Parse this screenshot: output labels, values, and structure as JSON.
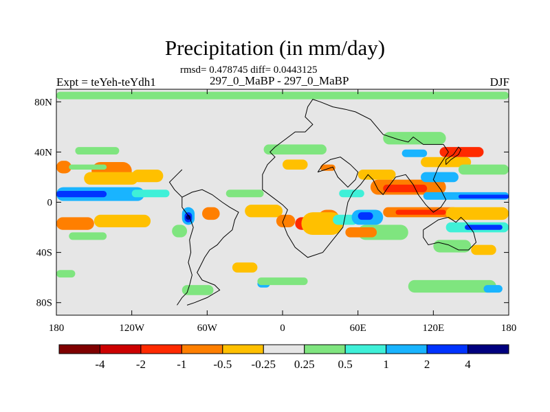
{
  "title": "Precipitation (in mm/day)",
  "stats": "rmsd= 0.478745 diff= 0.0443125",
  "left_label": "Expt = teYeh-teYdh1",
  "center_label": "297_0_MaBP - 297_0_MaBP",
  "right_label": "DJF",
  "chart_data": {
    "type": "heatmap",
    "subtype": "filled-contour map (cylindrical equidistant)",
    "title": "Precipitation (in mm/day)",
    "xlabel": "",
    "ylabel": "",
    "xlim": [
      -180,
      180
    ],
    "ylim": [
      -90,
      90
    ],
    "x_ticks": [
      {
        "value": -180,
        "label": "180"
      },
      {
        "value": -120,
        "label": "120W"
      },
      {
        "value": -60,
        "label": "60W"
      },
      {
        "value": 0,
        "label": "0"
      },
      {
        "value": 60,
        "label": "60E"
      },
      {
        "value": 120,
        "label": "120E"
      },
      {
        "value": 180,
        "label": "180"
      }
    ],
    "y_ticks": [
      {
        "value": 80,
        "label": "80N"
      },
      {
        "value": 40,
        "label": "40N"
      },
      {
        "value": 0,
        "label": "0"
      },
      {
        "value": -40,
        "label": "40S"
      },
      {
        "value": -80,
        "label": "80S"
      }
    ],
    "colorbar": {
      "levels": [
        -4,
        -2,
        -1,
        -0.5,
        -0.25,
        0.25,
        0.5,
        1,
        2,
        4
      ],
      "labels": [
        "-4",
        "-2",
        "-1",
        "-0.5",
        "-0.25",
        "0.25",
        "0.5",
        "1",
        "2",
        "4"
      ],
      "colors": [
        "#7f0000",
        "#cc0000",
        "#ff2a00",
        "#ff7f00",
        "#ffc000",
        "#e6e6e6",
        "#7fe57f",
        "#3ff0d8",
        "#19b4ff",
        "#0033ff",
        "#00007f"
      ]
    },
    "background_class": 5,
    "regions": [
      {
        "n": "arctic-band",
        "c": 6,
        "lon": [
          -180,
          180
        ],
        "lat": [
          82,
          88
        ]
      },
      {
        "n": "ne-pacific-wet",
        "c": 6,
        "lon": [
          -165,
          -130
        ],
        "lat": [
          38,
          44
        ]
      },
      {
        "n": "np-dry-1",
        "c": 3,
        "lon": [
          -180,
          -168
        ],
        "lat": [
          23,
          33
        ]
      },
      {
        "n": "np-dry-2",
        "c": 3,
        "lon": [
          -152,
          -120
        ],
        "lat": [
          18,
          32
        ]
      },
      {
        "n": "np-dry-3",
        "c": 4,
        "lon": [
          -158,
          -115
        ],
        "lat": [
          14,
          24
        ]
      },
      {
        "n": "np-dry-4",
        "c": 4,
        "lon": [
          -120,
          -95
        ],
        "lat": [
          16,
          26
        ]
      },
      {
        "n": "np-wet-1",
        "c": 6,
        "lon": [
          -170,
          -140
        ],
        "lat": [
          26,
          30
        ]
      },
      {
        "n": "eq-pac-wet",
        "c": 8,
        "lon": [
          -180,
          -110
        ],
        "lat": [
          1,
          12
        ]
      },
      {
        "n": "eq-pac-core",
        "c": 9,
        "lon": [
          -180,
          -140
        ],
        "lat": [
          4,
          9
        ]
      },
      {
        "n": "eq-pac-tail",
        "c": 7,
        "lon": [
          -120,
          -90
        ],
        "lat": [
          4,
          10
        ]
      },
      {
        "n": "sp-dry-1",
        "c": 3,
        "lon": [
          -180,
          -150
        ],
        "lat": [
          -22,
          -12
        ]
      },
      {
        "n": "sp-dry-2",
        "c": 4,
        "lon": [
          -150,
          -105
        ],
        "lat": [
          -20,
          -10
        ]
      },
      {
        "n": "sp-wet",
        "c": 6,
        "lon": [
          -170,
          -140
        ],
        "lat": [
          -30,
          -24
        ]
      },
      {
        "n": "sp-wet-2",
        "c": 6,
        "lon": [
          -180,
          -165
        ],
        "lat": [
          -60,
          -54
        ]
      },
      {
        "n": "amazon-wet",
        "c": 8,
        "lon": [
          -80,
          -70
        ],
        "lat": [
          -18,
          -4
        ]
      },
      {
        "n": "amazon-core",
        "c": 9,
        "lon": [
          -78,
          -72
        ],
        "lat": [
          -16,
          -8
        ]
      },
      {
        "n": "amazon-deep",
        "c": 10,
        "lon": [
          -77,
          -73
        ],
        "lat": [
          -14,
          -10
        ]
      },
      {
        "n": "andes-wet",
        "c": 6,
        "lon": [
          -88,
          -76
        ],
        "lat": [
          -28,
          -18
        ]
      },
      {
        "n": "atl-dry-1",
        "c": 3,
        "lon": [
          -64,
          -50
        ],
        "lat": [
          -14,
          -4
        ]
      },
      {
        "n": "atl-dry-2",
        "c": 4,
        "lon": [
          -30,
          0
        ],
        "lat": [
          -12,
          -2
        ]
      },
      {
        "n": "atl-dry-3",
        "c": 3,
        "lon": [
          -5,
          10
        ],
        "lat": [
          -20,
          -10
        ]
      },
      {
        "n": "atl-wet-n",
        "c": 6,
        "lon": [
          -45,
          -15
        ],
        "lat": [
          4,
          10
        ]
      },
      {
        "n": "sa-s-dry",
        "c": 4,
        "lon": [
          -40,
          -20
        ],
        "lat": [
          -56,
          -48
        ]
      },
      {
        "n": "sa-s-wet",
        "c": 8,
        "lon": [
          -20,
          -10
        ],
        "lat": [
          -68,
          -62
        ]
      },
      {
        "n": "so-wet-1",
        "c": 6,
        "lon": [
          -80,
          -55
        ],
        "lat": [
          -74,
          -66
        ]
      },
      {
        "n": "so-wet-2",
        "c": 6,
        "lon": [
          -20,
          20
        ],
        "lat": [
          -66,
          -60
        ]
      },
      {
        "n": "africa-dry-1",
        "c": 2,
        "lon": [
          10,
          28
        ],
        "lat": [
          -22,
          -12
        ]
      },
      {
        "n": "africa-dry-2",
        "c": 3,
        "lon": [
          28,
          45
        ],
        "lat": [
          -20,
          -6
        ]
      },
      {
        "n": "africa-dry-3",
        "c": 4,
        "lon": [
          15,
          48
        ],
        "lat": [
          -26,
          -8
        ]
      },
      {
        "n": "africa-wet",
        "c": 7,
        "lon": [
          40,
          60
        ],
        "lat": [
          -18,
          -10
        ]
      },
      {
        "n": "med-wet",
        "c": 6,
        "lon": [
          -15,
          35
        ],
        "lat": [
          38,
          46
        ]
      },
      {
        "n": "med-dry",
        "c": 4,
        "lon": [
          0,
          20
        ],
        "lat": [
          26,
          34
        ]
      },
      {
        "n": "sahara-dry",
        "c": 3,
        "lon": [
          30,
          42
        ],
        "lat": [
          25,
          30
        ]
      },
      {
        "n": "iran-wet",
        "c": 7,
        "lon": [
          45,
          65
        ],
        "lat": [
          4,
          10
        ]
      },
      {
        "n": "io-wet-1",
        "c": 6,
        "lon": [
          60,
          100
        ],
        "lat": [
          -30,
          -18
        ]
      },
      {
        "n": "io-wet-2",
        "c": 8,
        "lon": [
          55,
          80
        ],
        "lat": [
          -18,
          -6
        ]
      },
      {
        "n": "io-wet-3",
        "c": 9,
        "lon": [
          60,
          72
        ],
        "lat": [
          -14,
          -8
        ]
      },
      {
        "n": "io-dry",
        "c": 3,
        "lon": [
          50,
          75
        ],
        "lat": [
          -28,
          -20
        ]
      },
      {
        "n": "seasia-dry-1",
        "c": 3,
        "lon": [
          70,
          130
        ],
        "lat": [
          6,
          18
        ]
      },
      {
        "n": "seasia-dry-2",
        "c": 2,
        "lon": [
          80,
          115
        ],
        "lat": [
          8,
          14
        ]
      },
      {
        "n": "seasia-dry-3",
        "c": 4,
        "lon": [
          60,
          90
        ],
        "lat": [
          18,
          26
        ]
      },
      {
        "n": "seasia-wet",
        "c": 8,
        "lon": [
          110,
          140
        ],
        "lat": [
          16,
          24
        ]
      },
      {
        "n": "china-wet",
        "c": 6,
        "lon": [
          80,
          130
        ],
        "lat": [
          46,
          56
        ]
      },
      {
        "n": "japan-dry",
        "c": 2,
        "lon": [
          125,
          160
        ],
        "lat": [
          36,
          44
        ]
      },
      {
        "n": "japan-dry-2",
        "c": 4,
        "lon": [
          110,
          150
        ],
        "lat": [
          28,
          36
        ]
      },
      {
        "n": "korea-wet",
        "c": 8,
        "lon": [
          95,
          115
        ],
        "lat": [
          36,
          42
        ]
      },
      {
        "n": "nwpac-wet",
        "c": 6,
        "lon": [
          140,
          180
        ],
        "lat": [
          22,
          30
        ]
      },
      {
        "n": "spac-dry-w",
        "c": 3,
        "lon": [
          80,
          140
        ],
        "lat": [
          -12,
          -4
        ]
      },
      {
        "n": "spac-dry-w2",
        "c": 2,
        "lon": [
          90,
          130
        ],
        "lat": [
          -10,
          -6
        ]
      },
      {
        "n": "spac-dry-e",
        "c": 4,
        "lon": [
          130,
          180
        ],
        "lat": [
          -14,
          -4
        ]
      },
      {
        "n": "wpac-wet-1",
        "c": 8,
        "lon": [
          112,
          180
        ],
        "lat": [
          2,
          8
        ]
      },
      {
        "n": "wpac-wet-2",
        "c": 9,
        "lon": [
          140,
          180
        ],
        "lat": [
          3,
          6
        ]
      },
      {
        "n": "spcz-wet",
        "c": 7,
        "lon": [
          130,
          180
        ],
        "lat": [
          -24,
          -16
        ]
      },
      {
        "n": "spcz-core",
        "c": 9,
        "lon": [
          145,
          175
        ],
        "lat": [
          -22,
          -18
        ]
      },
      {
        "n": "aus-wet",
        "c": 6,
        "lon": [
          120,
          150
        ],
        "lat": [
          -40,
          -30
        ]
      },
      {
        "n": "aus-dry",
        "c": 4,
        "lon": [
          150,
          170
        ],
        "lat": [
          -42,
          -34
        ]
      },
      {
        "n": "so-wet-3",
        "c": 6,
        "lon": [
          100,
          170
        ],
        "lat": [
          -72,
          -62
        ]
      },
      {
        "n": "so-wet-4",
        "c": 8,
        "lon": [
          160,
          175
        ],
        "lat": [
          -72,
          -66
        ]
      }
    ],
    "coastlines": [
      {
        "name": "americas",
        "points": [
          [
            -84,
            -82
          ],
          [
            -80,
            -76
          ],
          [
            -76,
            -72
          ],
          [
            -74,
            -66
          ],
          [
            -72,
            -58
          ],
          [
            -75,
            -48
          ],
          [
            -73,
            -40
          ],
          [
            -74,
            -30
          ],
          [
            -71,
            -20
          ],
          [
            -74,
            -12
          ],
          [
            -80,
            -4
          ],
          [
            -80,
            4
          ],
          [
            -72,
            8
          ],
          [
            -64,
            10
          ],
          [
            -56,
            6
          ],
          [
            -48,
            0
          ],
          [
            -42,
            -4
          ],
          [
            -35,
            -8
          ],
          [
            -38,
            -14
          ],
          [
            -40,
            -22
          ],
          [
            -47,
            -28
          ],
          [
            -52,
            -34
          ],
          [
            -58,
            -38
          ],
          [
            -62,
            -44
          ],
          [
            -66,
            -52
          ],
          [
            -68,
            -56
          ],
          [
            -64,
            -62
          ],
          [
            -54,
            -66
          ],
          [
            -50,
            -70
          ],
          [
            -60,
            -76
          ],
          [
            -70,
            -80
          ],
          [
            -76,
            -82
          ]
        ]
      },
      {
        "name": "n-america-stub",
        "points": [
          [
            -80,
            4
          ],
          [
            -86,
            10
          ],
          [
            -90,
            16
          ],
          [
            -84,
            22
          ],
          [
            -80,
            26
          ]
        ]
      },
      {
        "name": "africa-eurasia",
        "points": [
          [
            0,
            -16
          ],
          [
            4,
            -26
          ],
          [
            10,
            -36
          ],
          [
            20,
            -44
          ],
          [
            32,
            -40
          ],
          [
            40,
            -30
          ],
          [
            48,
            -20
          ],
          [
            50,
            -10
          ],
          [
            52,
            0
          ],
          [
            56,
            8
          ],
          [
            62,
            14
          ],
          [
            68,
            22
          ],
          [
            72,
            18
          ],
          [
            76,
            10
          ],
          [
            80,
            6
          ],
          [
            84,
            12
          ],
          [
            90,
            20
          ],
          [
            98,
            22
          ],
          [
            104,
            14
          ],
          [
            108,
            6
          ],
          [
            114,
            -2
          ],
          [
            120,
            -8
          ],
          [
            126,
            -4
          ],
          [
            130,
            2
          ],
          [
            126,
            10
          ],
          [
            120,
            18
          ],
          [
            124,
            28
          ],
          [
            132,
            40
          ],
          [
            128,
            46
          ],
          [
            112,
            46
          ],
          [
            104,
            52
          ],
          [
            100,
            48
          ],
          [
            92,
            50
          ],
          [
            80,
            54
          ],
          [
            70,
            66
          ],
          [
            58,
            72
          ],
          [
            50,
            74
          ],
          [
            40,
            76
          ],
          [
            30,
            80
          ],
          [
            24,
            82
          ],
          [
            20,
            76
          ],
          [
            18,
            68
          ],
          [
            24,
            62
          ],
          [
            18,
            56
          ],
          [
            10,
            56
          ],
          [
            2,
            50
          ],
          [
            -6,
            44
          ],
          [
            -10,
            40
          ],
          [
            -6,
            36
          ],
          [
            -12,
            30
          ],
          [
            -16,
            22
          ],
          [
            -16,
            10
          ],
          [
            -8,
            4
          ],
          [
            0,
            -2
          ],
          [
            4,
            -6
          ],
          [
            0,
            -16
          ]
        ]
      },
      {
        "name": "arabia",
        "points": [
          [
            28,
            24
          ],
          [
            34,
            26
          ],
          [
            40,
            28
          ],
          [
            44,
            20
          ],
          [
            52,
            12
          ],
          [
            58,
            18
          ],
          [
            60,
            24
          ],
          [
            54,
            30
          ],
          [
            46,
            36
          ],
          [
            38,
            34
          ],
          [
            32,
            30
          ],
          [
            28,
            24
          ]
        ]
      },
      {
        "name": "australia",
        "points": [
          [
            112,
            -22
          ],
          [
            118,
            -18
          ],
          [
            124,
            -14
          ],
          [
            132,
            -12
          ],
          [
            138,
            -16
          ],
          [
            142,
            -12
          ],
          [
            146,
            -16
          ],
          [
            152,
            -24
          ],
          [
            154,
            -32
          ],
          [
            148,
            -38
          ],
          [
            140,
            -38
          ],
          [
            132,
            -34
          ],
          [
            124,
            -32
          ],
          [
            116,
            -34
          ],
          [
            112,
            -28
          ],
          [
            112,
            -22
          ]
        ]
      },
      {
        "name": "japan",
        "points": [
          [
            130,
            30
          ],
          [
            134,
            34
          ],
          [
            140,
            38
          ],
          [
            142,
            42
          ],
          [
            140,
            44
          ],
          [
            136,
            38
          ],
          [
            130,
            34
          ],
          [
            130,
            30
          ]
        ]
      }
    ]
  }
}
